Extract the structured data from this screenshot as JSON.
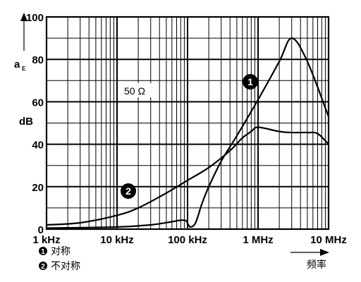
{
  "chart_data": {
    "type": "line",
    "xscale": "log",
    "xlim": [
      "1 kHz",
      "10 MHz"
    ],
    "ylim": [
      0,
      100
    ],
    "ylabel": "a",
    "ylabel_subscript": "E",
    "yunit": "dB",
    "xlabel": "频率",
    "x_tick_labels": [
      "1 kHz",
      "10 kHz",
      "100 kHz",
      "1 MHz",
      "10 MHz"
    ],
    "y_tick_labels": [
      "0",
      "20",
      "40",
      "60",
      "80",
      "100"
    ],
    "annotation": "50 Ω",
    "grid": true,
    "series": [
      {
        "marker": "1",
        "name": "对称",
        "x_hz": [
          1000,
          10000,
          30000,
          60000,
          80000,
          95000,
          100000,
          110000,
          130000,
          160000,
          200000,
          300000,
          500000,
          1000000,
          2000000,
          3000000,
          5000000,
          10000000
        ],
        "y_db": [
          0.5,
          1,
          2,
          3.5,
          4.2,
          4,
          2.8,
          1,
          3,
          12,
          20,
          32,
          44,
          61,
          79,
          90,
          79,
          53
        ]
      },
      {
        "marker": "2",
        "name": "不对称",
        "x_hz": [
          1000,
          3000,
          10000,
          20000,
          50000,
          100000,
          200000,
          400000,
          600000,
          800000,
          1000000,
          2000000,
          3000000,
          5000000,
          7000000,
          10000000
        ],
        "y_db": [
          2,
          3,
          6.5,
          10,
          17,
          23,
          29,
          37,
          43,
          46,
          48,
          46,
          45.5,
          45.5,
          45,
          40
        ]
      }
    ]
  }
}
